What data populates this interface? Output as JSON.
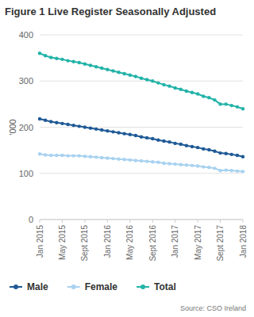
{
  "chart_data": {
    "type": "line",
    "title": "Figure 1 Live Register Seasonally Adjusted",
    "y_label": "'000",
    "source": "Source: CSO Ireland",
    "categories": [
      "Jan 2015",
      null,
      null,
      null,
      "May 2015",
      null,
      null,
      null,
      "Sept 2015",
      null,
      null,
      null,
      "Jan 2016",
      null,
      null,
      null,
      "May 2016",
      null,
      null,
      null,
      "Sept 2016",
      null,
      null,
      null,
      "Jan 2017",
      null,
      null,
      null,
      "May 2017",
      null,
      null,
      null,
      "Sept 2017",
      null,
      null,
      null,
      "Jan 2018"
    ],
    "series": [
      {
        "name": "Male",
        "color": "#1f5a96",
        "values": [
          218,
          215,
          212,
          210,
          208,
          206,
          204,
          202,
          200,
          198,
          196,
          194,
          192,
          190,
          188,
          186,
          184,
          182,
          179,
          177,
          175,
          172,
          170,
          168,
          165,
          163,
          160,
          158,
          156,
          153,
          151,
          148,
          144,
          143,
          141,
          139,
          136
        ]
      },
      {
        "name": "Female",
        "color": "#a8d2f0",
        "values": [
          142,
          140,
          139,
          139,
          139,
          138,
          138,
          138,
          137,
          136,
          135,
          134,
          133,
          132,
          131,
          130,
          129,
          128,
          127,
          126,
          125,
          124,
          122,
          121,
          120,
          119,
          118,
          117,
          116,
          114,
          113,
          111,
          106,
          107,
          106,
          105,
          104
        ]
      },
      {
        "name": "Total",
        "color": "#23b3a8",
        "values": [
          360,
          355,
          351,
          349,
          347,
          344,
          342,
          340,
          337,
          334,
          331,
          328,
          325,
          322,
          319,
          316,
          313,
          310,
          306,
          303,
          300,
          296,
          292,
          289,
          285,
          282,
          278,
          275,
          272,
          267,
          264,
          259,
          250,
          250,
          247,
          244,
          240
        ]
      }
    ],
    "ylim": [
      0,
      400
    ],
    "yticks": [
      0,
      100,
      200,
      300,
      400
    ],
    "grid": true,
    "legend": "bottom",
    "marker": "circle"
  }
}
